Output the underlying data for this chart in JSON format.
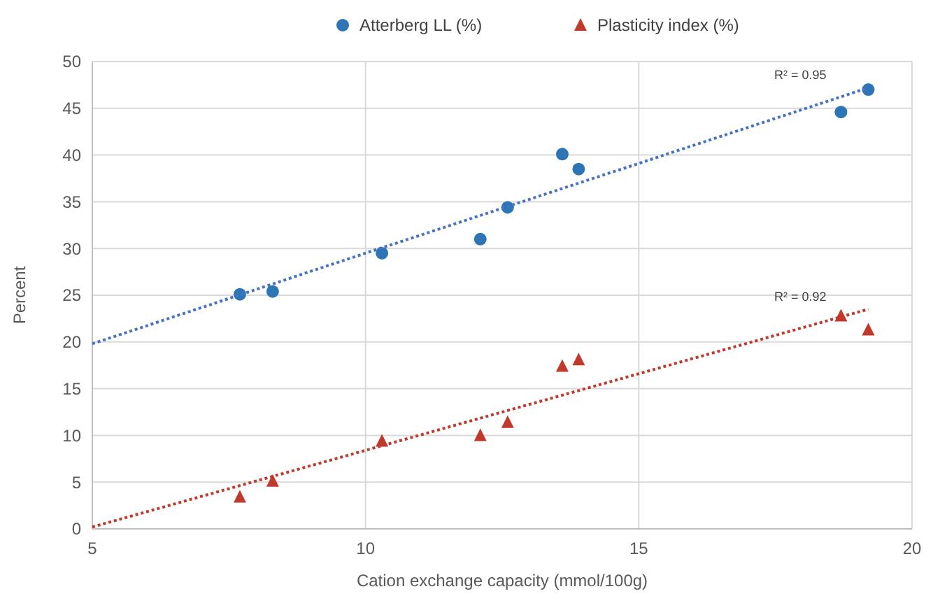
{
  "chart_data": {
    "type": "scatter",
    "xlabel": "Cation exchange capacity (mmol/100g)",
    "ylabel": "Percent",
    "xlim": [
      5,
      20
    ],
    "xticks": [
      5,
      10,
      15,
      20
    ],
    "ylim": [
      0,
      50
    ],
    "yticks": [
      0,
      5,
      10,
      15,
      20,
      25,
      30,
      35,
      40,
      45,
      50
    ],
    "grid": true,
    "legend": "top",
    "x": [
      7.7,
      8.3,
      10.3,
      12.1,
      12.6,
      13.6,
      13.9,
      18.7,
      19.2
    ],
    "series": [
      {
        "name": "Atterberg LL (%)",
        "color": "#2e75b6",
        "marker": "circle",
        "values": [
          25.1,
          25.4,
          29.5,
          31.0,
          34.4,
          40.1,
          38.5,
          44.6,
          47.0
        ]
      },
      {
        "name": "Plasticity index (%)",
        "color": "#c0392b",
        "marker": "triangle",
        "values": [
          3.4,
          5.1,
          9.4,
          10.0,
          11.4,
          17.4,
          18.1,
          22.8,
          21.3
        ]
      },
      {
        "type": "line",
        "color": "#4472c4",
        "line_style": "dotted",
        "marker": "none",
        "x": [
          5,
          10,
          15,
          19.2
        ],
        "values": [
          19.8,
          29.5,
          39.1,
          47.2
        ]
      },
      {
        "type": "line",
        "color": "#c0392b",
        "line_style": "dotted",
        "marker": "none",
        "x": [
          5,
          10,
          15,
          19.2
        ],
        "values": [
          0.2,
          8.4,
          16.6,
          23.5
        ]
      }
    ],
    "annotations": [
      "R² = 0.95",
      "R² = 0.92"
    ]
  }
}
